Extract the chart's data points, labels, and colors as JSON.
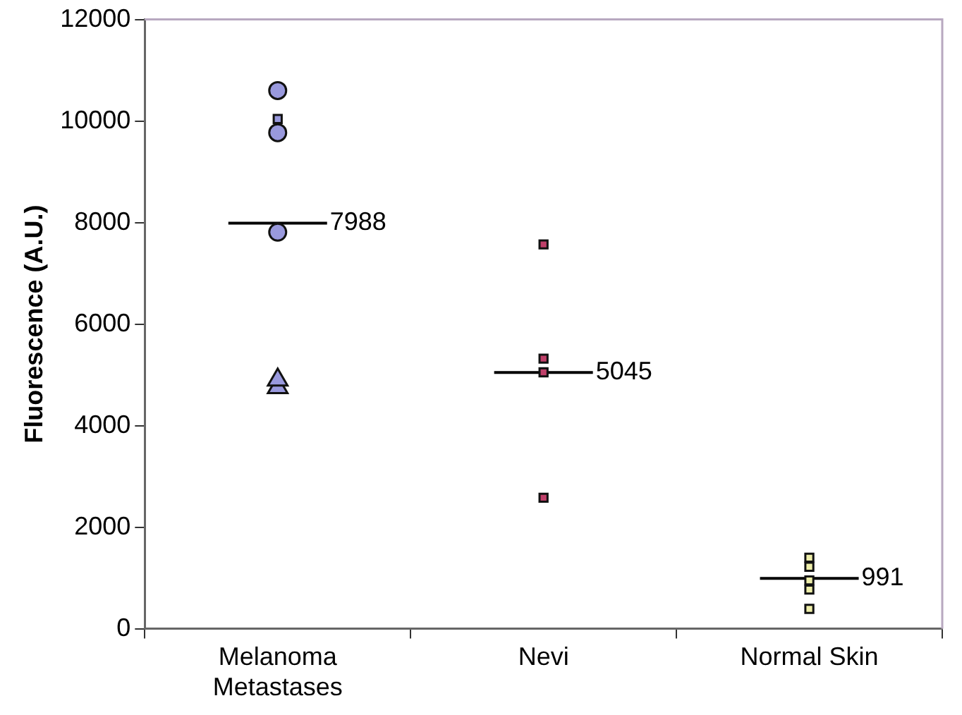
{
  "chart_data": {
    "type": "scatter",
    "ylabel": "Fluorescence (A.U.)",
    "categories": [
      "Melanoma Metastases",
      "Nevi",
      "Normal Skin"
    ],
    "ylim": [
      0,
      12000
    ],
    "yticks": [
      0,
      2000,
      4000,
      6000,
      8000,
      10000,
      12000
    ],
    "series": [
      {
        "marker": "circle",
        "color": "#9999dd",
        "x": [
          "Melanoma Metastases",
          "Melanoma Metastases",
          "Melanoma Metastases"
        ],
        "values": [
          10600,
          9770,
          7810
        ]
      },
      {
        "marker": "square",
        "color": "#9999dd",
        "x": [
          "Melanoma Metastases"
        ],
        "values": [
          10040
        ]
      },
      {
        "marker": "triangle",
        "color": "#9999dd",
        "x": [
          "Melanoma Metastases",
          "Melanoma Metastases"
        ],
        "values": [
          4750,
          4900
        ]
      },
      {
        "marker": "square",
        "color": "#c0406a",
        "x": [
          "Nevi",
          "Nevi",
          "Nevi",
          "Nevi"
        ],
        "values": [
          7570,
          5320,
          5050,
          2580
        ]
      },
      {
        "marker": "square",
        "color": "#eeeeaa",
        "x": [
          "Normal Skin",
          "Normal Skin",
          "Normal Skin",
          "Normal Skin",
          "Normal Skin"
        ],
        "values": [
          1400,
          1220,
          950,
          770,
          390
        ]
      }
    ],
    "annotations": [
      {
        "text": "7988",
        "x": "Melanoma Metastases",
        "y": 7988
      },
      {
        "text": "5045",
        "x": "Nevi",
        "y": 5045
      },
      {
        "text": "991",
        "x": "Normal Skin",
        "y": 991
      }
    ]
  }
}
